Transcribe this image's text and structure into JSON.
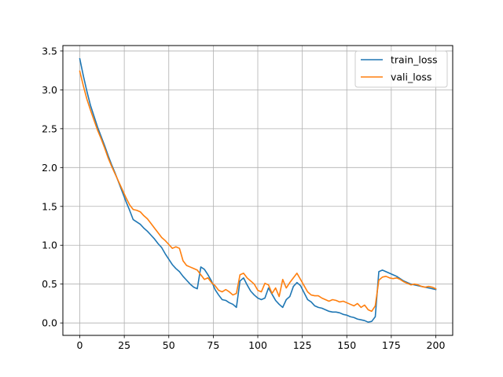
{
  "chart_data": {
    "type": "line",
    "title": "",
    "xlabel": "",
    "ylabel": "",
    "xlim": [
      -9.5,
      209.5
    ],
    "ylim": [
      -0.16,
      3.57
    ],
    "grid": true,
    "legend_position": "top-right",
    "x_ticks": [
      0,
      25,
      50,
      75,
      100,
      125,
      150,
      175,
      200
    ],
    "y_ticks": [
      0.0,
      0.5,
      1.0,
      1.5,
      2.0,
      2.5,
      3.0,
      3.5
    ],
    "series": [
      {
        "name": "train_loss",
        "color": "#1f77b4",
        "points": [
          [
            0,
            3.4
          ],
          [
            2,
            3.18
          ],
          [
            4,
            2.98
          ],
          [
            6,
            2.8
          ],
          [
            8,
            2.66
          ],
          [
            10,
            2.52
          ],
          [
            12,
            2.4
          ],
          [
            14,
            2.28
          ],
          [
            16,
            2.15
          ],
          [
            18,
            2.03
          ],
          [
            20,
            1.92
          ],
          [
            22,
            1.8
          ],
          [
            24,
            1.68
          ],
          [
            26,
            1.56
          ],
          [
            28,
            1.45
          ],
          [
            30,
            1.33
          ],
          [
            32,
            1.3
          ],
          [
            34,
            1.27
          ],
          [
            36,
            1.22
          ],
          [
            38,
            1.18
          ],
          [
            40,
            1.13
          ],
          [
            42,
            1.08
          ],
          [
            44,
            1.02
          ],
          [
            46,
            0.97
          ],
          [
            48,
            0.89
          ],
          [
            50,
            0.82
          ],
          [
            52,
            0.75
          ],
          [
            54,
            0.7
          ],
          [
            56,
            0.66
          ],
          [
            58,
            0.6
          ],
          [
            60,
            0.55
          ],
          [
            62,
            0.5
          ],
          [
            64,
            0.46
          ],
          [
            66,
            0.44
          ],
          [
            68,
            0.72
          ],
          [
            70,
            0.69
          ],
          [
            72,
            0.62
          ],
          [
            74,
            0.54
          ],
          [
            76,
            0.43
          ],
          [
            78,
            0.36
          ],
          [
            80,
            0.3
          ],
          [
            82,
            0.29
          ],
          [
            84,
            0.26
          ],
          [
            86,
            0.24
          ],
          [
            88,
            0.2
          ],
          [
            90,
            0.54
          ],
          [
            92,
            0.58
          ],
          [
            94,
            0.49
          ],
          [
            96,
            0.41
          ],
          [
            98,
            0.36
          ],
          [
            100,
            0.32
          ],
          [
            102,
            0.3
          ],
          [
            104,
            0.32
          ],
          [
            106,
            0.45
          ],
          [
            108,
            0.37
          ],
          [
            110,
            0.29
          ],
          [
            112,
            0.24
          ],
          [
            114,
            0.2
          ],
          [
            116,
            0.3
          ],
          [
            118,
            0.34
          ],
          [
            120,
            0.47
          ],
          [
            122,
            0.52
          ],
          [
            124,
            0.48
          ],
          [
            126,
            0.39
          ],
          [
            128,
            0.3
          ],
          [
            130,
            0.27
          ],
          [
            132,
            0.22
          ],
          [
            134,
            0.2
          ],
          [
            136,
            0.19
          ],
          [
            138,
            0.17
          ],
          [
            140,
            0.15
          ],
          [
            142,
            0.14
          ],
          [
            144,
            0.14
          ],
          [
            146,
            0.13
          ],
          [
            148,
            0.11
          ],
          [
            150,
            0.1
          ],
          [
            152,
            0.08
          ],
          [
            154,
            0.07
          ],
          [
            156,
            0.05
          ],
          [
            158,
            0.04
          ],
          [
            160,
            0.03
          ],
          [
            162,
            0.01
          ],
          [
            164,
            0.02
          ],
          [
            166,
            0.08
          ],
          [
            168,
            0.66
          ],
          [
            170,
            0.68
          ],
          [
            172,
            0.66
          ],
          [
            174,
            0.64
          ],
          [
            176,
            0.62
          ],
          [
            178,
            0.6
          ],
          [
            180,
            0.57
          ],
          [
            182,
            0.54
          ],
          [
            184,
            0.52
          ],
          [
            186,
            0.5
          ],
          [
            188,
            0.49
          ],
          [
            190,
            0.48
          ],
          [
            192,
            0.47
          ],
          [
            194,
            0.46
          ],
          [
            196,
            0.45
          ],
          [
            198,
            0.44
          ],
          [
            200,
            0.43
          ]
        ]
      },
      {
        "name": "vali_loss",
        "color": "#ff7f0e",
        "points": [
          [
            0,
            3.24
          ],
          [
            2,
            3.05
          ],
          [
            4,
            2.88
          ],
          [
            6,
            2.74
          ],
          [
            8,
            2.61
          ],
          [
            10,
            2.48
          ],
          [
            12,
            2.37
          ],
          [
            14,
            2.25
          ],
          [
            16,
            2.12
          ],
          [
            18,
            2.01
          ],
          [
            20,
            1.91
          ],
          [
            22,
            1.81
          ],
          [
            24,
            1.71
          ],
          [
            26,
            1.61
          ],
          [
            28,
            1.52
          ],
          [
            30,
            1.46
          ],
          [
            32,
            1.45
          ],
          [
            34,
            1.43
          ],
          [
            36,
            1.38
          ],
          [
            38,
            1.34
          ],
          [
            40,
            1.28
          ],
          [
            42,
            1.22
          ],
          [
            44,
            1.16
          ],
          [
            46,
            1.1
          ],
          [
            48,
            1.06
          ],
          [
            50,
            1.01
          ],
          [
            52,
            0.96
          ],
          [
            54,
            0.98
          ],
          [
            56,
            0.96
          ],
          [
            58,
            0.8
          ],
          [
            60,
            0.74
          ],
          [
            62,
            0.72
          ],
          [
            64,
            0.7
          ],
          [
            66,
            0.68
          ],
          [
            68,
            0.62
          ],
          [
            70,
            0.56
          ],
          [
            72,
            0.58
          ],
          [
            74,
            0.52
          ],
          [
            76,
            0.48
          ],
          [
            78,
            0.42
          ],
          [
            80,
            0.4
          ],
          [
            82,
            0.43
          ],
          [
            84,
            0.4
          ],
          [
            86,
            0.36
          ],
          [
            88,
            0.38
          ],
          [
            90,
            0.62
          ],
          [
            92,
            0.64
          ],
          [
            94,
            0.58
          ],
          [
            96,
            0.54
          ],
          [
            98,
            0.5
          ],
          [
            100,
            0.42
          ],
          [
            102,
            0.4
          ],
          [
            104,
            0.51
          ],
          [
            106,
            0.49
          ],
          [
            108,
            0.38
          ],
          [
            110,
            0.45
          ],
          [
            112,
            0.34
          ],
          [
            114,
            0.56
          ],
          [
            116,
            0.45
          ],
          [
            118,
            0.52
          ],
          [
            120,
            0.58
          ],
          [
            122,
            0.64
          ],
          [
            124,
            0.56
          ],
          [
            126,
            0.48
          ],
          [
            128,
            0.4
          ],
          [
            130,
            0.36
          ],
          [
            132,
            0.35
          ],
          [
            134,
            0.35
          ],
          [
            136,
            0.32
          ],
          [
            138,
            0.3
          ],
          [
            140,
            0.28
          ],
          [
            142,
            0.3
          ],
          [
            144,
            0.29
          ],
          [
            146,
            0.27
          ],
          [
            148,
            0.28
          ],
          [
            150,
            0.26
          ],
          [
            152,
            0.24
          ],
          [
            154,
            0.22
          ],
          [
            156,
            0.25
          ],
          [
            158,
            0.2
          ],
          [
            160,
            0.23
          ],
          [
            162,
            0.17
          ],
          [
            164,
            0.15
          ],
          [
            166,
            0.22
          ],
          [
            168,
            0.55
          ],
          [
            170,
            0.59
          ],
          [
            172,
            0.6
          ],
          [
            174,
            0.58
          ],
          [
            176,
            0.57
          ],
          [
            178,
            0.58
          ],
          [
            180,
            0.56
          ],
          [
            182,
            0.53
          ],
          [
            184,
            0.51
          ],
          [
            186,
            0.49
          ],
          [
            188,
            0.5
          ],
          [
            190,
            0.49
          ],
          [
            192,
            0.47
          ],
          [
            194,
            0.46
          ],
          [
            196,
            0.47
          ],
          [
            198,
            0.46
          ],
          [
            200,
            0.44
          ]
        ]
      }
    ]
  }
}
